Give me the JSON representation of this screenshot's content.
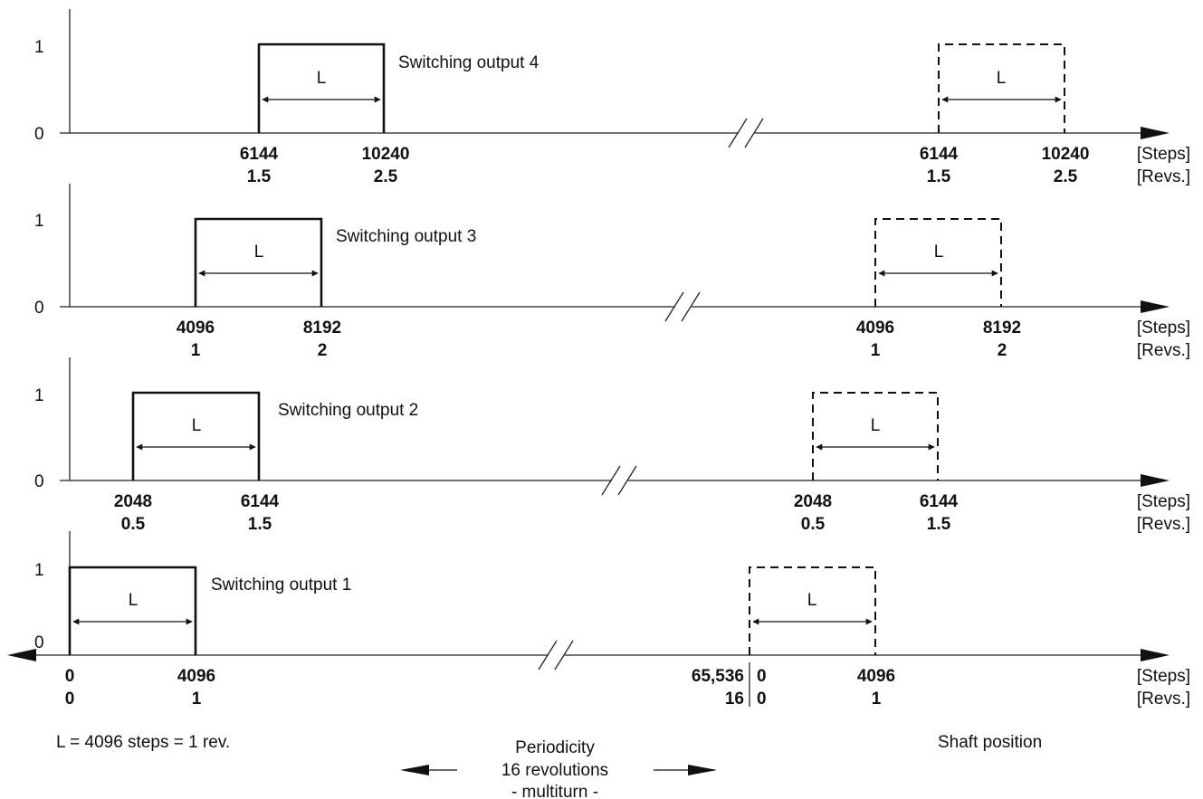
{
  "level_labels": {
    "high": "1",
    "low": "0"
  },
  "L_label": "L",
  "units": {
    "steps": "[Steps]",
    "revs": "[Revs.]"
  },
  "rows": [
    {
      "title": "Switching output 4",
      "pulse_start": {
        "steps": "6144",
        "revs": "1.5"
      },
      "pulse_end": {
        "steps": "10240",
        "revs": "2.5"
      },
      "repeat_start": {
        "steps": "6144",
        "revs": "1.5"
      },
      "repeat_end": {
        "steps": "10240",
        "revs": "2.5"
      }
    },
    {
      "title": "Switching output 3",
      "pulse_start": {
        "steps": "4096",
        "revs": "1"
      },
      "pulse_end": {
        "steps": "8192",
        "revs": "2"
      },
      "repeat_start": {
        "steps": "4096",
        "revs": "1"
      },
      "repeat_end": {
        "steps": "8192",
        "revs": "2"
      }
    },
    {
      "title": "Switching output 2",
      "pulse_start": {
        "steps": "2048",
        "revs": "0.5"
      },
      "pulse_end": {
        "steps": "6144",
        "revs": "1.5"
      },
      "repeat_start": {
        "steps": "2048",
        "revs": "0.5"
      },
      "repeat_end": {
        "steps": "6144",
        "revs": "1.5"
      }
    },
    {
      "title": "Switching output 1",
      "pulse_start": {
        "steps": "0",
        "revs": "0"
      },
      "pulse_end": {
        "steps": "4096",
        "revs": "1"
      },
      "repeat_start": {
        "steps": "0",
        "revs": "0"
      },
      "repeat_end": {
        "steps": "4096",
        "revs": "1"
      },
      "period_end": {
        "steps": "65,536",
        "revs": "16"
      }
    }
  ],
  "footer": {
    "legend": "L = 4096 steps = 1 rev.",
    "periodicity": [
      "Periodicity",
      "16 revolutions",
      "- multiturn -"
    ],
    "shaft": "Shaft position"
  }
}
